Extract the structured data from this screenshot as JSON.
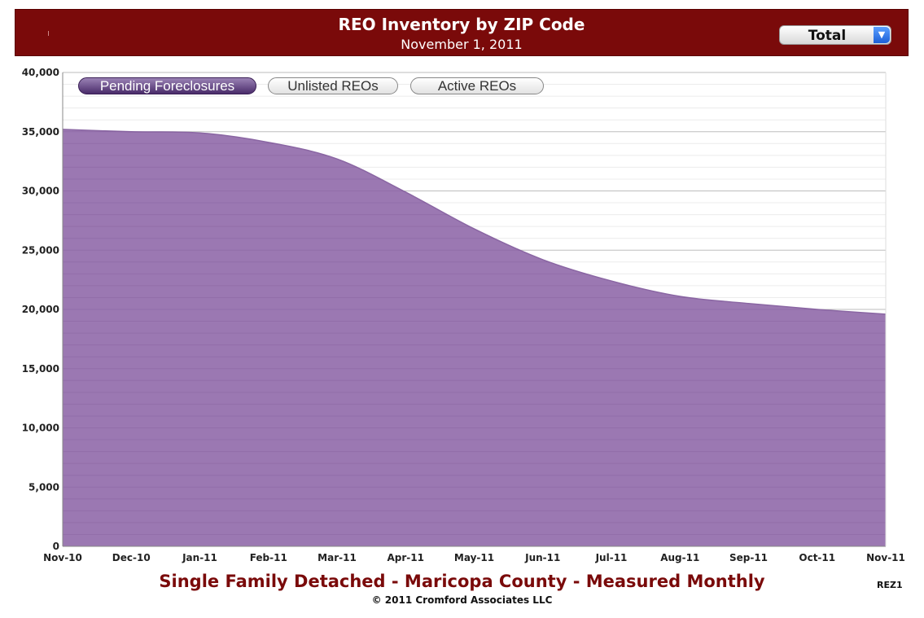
{
  "header": {
    "title": "REO Inventory by ZIP Code",
    "subtitle": "November 1, 2011",
    "dropdown_value": "Total"
  },
  "tabs": [
    {
      "label": "Pending Foreclosures",
      "active": true
    },
    {
      "label": "Unlisted REOs",
      "active": false
    },
    {
      "label": "Active REOs",
      "active": false
    }
  ],
  "footer": {
    "title": "Single Family Detached - Maricopa County - Measured Monthly",
    "copyright": "© 2011 Cromford Associates LLC",
    "code": "REZ1"
  },
  "colors": {
    "header_bg": "#7a0a0a",
    "area_fill": "#9b78b2",
    "footer_title": "#7a0a0a"
  },
  "chart_data": {
    "type": "area",
    "categories": [
      "Nov-10",
      "Dec-10",
      "Jan-11",
      "Feb-11",
      "Mar-11",
      "Apr-11",
      "May-11",
      "Jun-11",
      "Jul-11",
      "Aug-11",
      "Sep-11",
      "Oct-11",
      "Nov-11"
    ],
    "series": [
      {
        "values": [
          35200,
          35000,
          34900,
          34100,
          32700,
          29900,
          26800,
          24200,
          22400,
          21100,
          20500,
          20000,
          19600
        ]
      }
    ],
    "ylim": [
      0,
      40000
    ],
    "yticks": [
      "0",
      "5,000",
      "10,000",
      "15,000",
      "20,000",
      "25,000",
      "30,000",
      "35,000",
      "40,000"
    ],
    "ytick_values": [
      0,
      5000,
      10000,
      15000,
      20000,
      25000,
      30000,
      35000,
      40000
    ],
    "grid": true
  }
}
